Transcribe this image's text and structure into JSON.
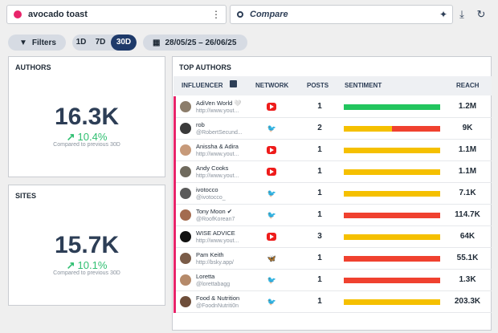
{
  "header": {
    "query_text": "avocado toast",
    "query_color": "#e8246a",
    "compare_placeholder": "Compare",
    "icons": [
      "kebab-menu-icon",
      "sparkle-icon",
      "download-icon",
      "refresh-icon"
    ]
  },
  "filters": {
    "filters_label": "Filters",
    "ranges": [
      "1D",
      "7D",
      "30D"
    ],
    "selected_range": "30D",
    "date_range": "28/05/25 – 26/06/25"
  },
  "authors_card": {
    "title": "AUTHORS",
    "value": "16.3K",
    "delta": "10.4%",
    "compare_text": "Compared to previous 30D"
  },
  "sites_card": {
    "title": "SITES",
    "value": "15.7K",
    "delta": "10.1%",
    "compare_text": "Compared to previous 30D"
  },
  "top_authors": {
    "title": "TOP AUTHORS",
    "columns": {
      "influencer": "INFLUENCER",
      "network": "NETWORK",
      "posts": "POSTS",
      "sentiment": "SENTIMENT",
      "reach": "REACH"
    },
    "sentiment_colors": {
      "positive": "#22c55e",
      "neutral": "#f5c000",
      "negative": "#f0412f"
    },
    "rows": [
      {
        "name": "AdiVen World 🤍",
        "handle": "http://www.yout...",
        "network": "youtube",
        "posts": "1",
        "sentiment": {
          "positive": 1,
          "neutral": 0,
          "negative": 0
        },
        "reach": "1.2M"
      },
      {
        "name": "rob",
        "handle": "@RobertSecund...",
        "network": "twitter",
        "posts": "2",
        "sentiment": {
          "positive": 0,
          "neutral": 0.5,
          "negative": 0.5
        },
        "reach": "9K"
      },
      {
        "name": "Anissha & Adira",
        "handle": "http://www.yout...",
        "network": "youtube",
        "posts": "1",
        "sentiment": {
          "positive": 0,
          "neutral": 1,
          "negative": 0
        },
        "reach": "1.1M"
      },
      {
        "name": "Andy Cooks",
        "handle": "http://www.yout...",
        "network": "youtube",
        "posts": "1",
        "sentiment": {
          "positive": 0,
          "neutral": 1,
          "negative": 0
        },
        "reach": "1.1M"
      },
      {
        "name": "ivotocco",
        "handle": "@ivotocco_",
        "network": "twitter",
        "posts": "1",
        "sentiment": {
          "positive": 0,
          "neutral": 1,
          "negative": 0
        },
        "reach": "7.1K"
      },
      {
        "name": "Tony Moon ✔",
        "handle": "@RoofKorean7",
        "network": "twitter",
        "posts": "1",
        "sentiment": {
          "positive": 0,
          "neutral": 0,
          "negative": 1
        },
        "reach": "114.7K"
      },
      {
        "name": "WISE ADVICE",
        "handle": "http://www.yout...",
        "network": "youtube",
        "posts": "3",
        "sentiment": {
          "positive": 0,
          "neutral": 1,
          "negative": 0
        },
        "reach": "64K"
      },
      {
        "name": "Pam Keith",
        "handle": "http://bsky.app/",
        "network": "bluesky",
        "posts": "1",
        "sentiment": {
          "positive": 0,
          "neutral": 0,
          "negative": 1
        },
        "reach": "55.1K"
      },
      {
        "name": "Loretta",
        "handle": "@lorettabagg",
        "network": "twitter",
        "posts": "1",
        "sentiment": {
          "positive": 0,
          "neutral": 0,
          "negative": 1
        },
        "reach": "1.3K"
      },
      {
        "name": "Food & Nutrition",
        "handle": "@FoodnNutriti0n",
        "network": "twitter",
        "posts": "1",
        "sentiment": {
          "positive": 0,
          "neutral": 1,
          "negative": 0
        },
        "reach": "203.3K"
      }
    ]
  }
}
